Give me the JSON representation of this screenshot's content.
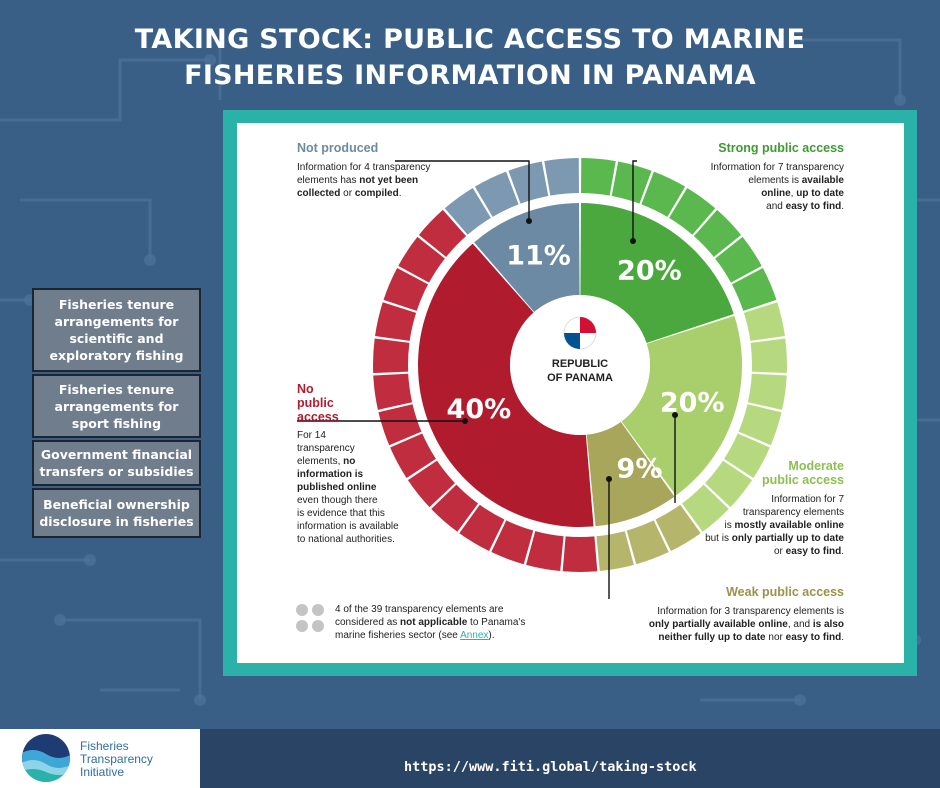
{
  "page": {
    "title_line1": "TAKING STOCK: PUBLIC ACCESS TO MARINE",
    "title_line2": "FISHERIES INFORMATION IN PANAMA",
    "footer_url": "https://www.fiti.global/taking-stock",
    "logo_line1": "Fisheries",
    "logo_line2": "Transparency",
    "logo_line3": "Initiative",
    "center_label_line1": "REPUBLIC",
    "center_label_line2": "OF PANAMA"
  },
  "side_list": [
    "Fisheries tenure arrangements for scientific and exploratory fishing",
    "Fisheries tenure arrangements for sport fishing",
    "Government financial transfers or subsidies",
    "Beneficial ownership disclosure in fisheries"
  ],
  "categories": {
    "not_produced": {
      "title": "Not produced",
      "desc_1": "Information for 4 transparency",
      "desc_2a": "elements has ",
      "desc_2b": "not yet been",
      "desc_3a": "collected",
      "desc_3b": " or ",
      "desc_3c": "compiled",
      "desc_3d": "."
    },
    "strong": {
      "title": "Strong public access",
      "desc_1": "Information for 7 transparency",
      "desc_2a": "elements is ",
      "desc_2b": "available",
      "desc_3a": "online",
      "desc_3b": ", ",
      "desc_3c": "up to date",
      "desc_4a": "and ",
      "desc_4b": "easy to find",
      "desc_4c": "."
    },
    "moderate": {
      "title_1": "Moderate",
      "title_2": "public access",
      "desc_1": "Information for 7",
      "desc_2": "transparency elements",
      "desc_3a": "is ",
      "desc_3b": "mostly available online",
      "desc_4a": "but is ",
      "desc_4b": "only partially up to date",
      "desc_5a": "or ",
      "desc_5b": "easy to find",
      "desc_5c": "."
    },
    "weak": {
      "title": "Weak public access",
      "desc_1": "Information for 3 transparency elements is",
      "desc_2a": "only partially available online",
      "desc_2b": ", and ",
      "desc_2c": "is also",
      "desc_3a": "neither fully up to date",
      "desc_3b": " nor ",
      "desc_3c": "easy to find",
      "desc_3d": "."
    },
    "none": {
      "title_1": "No",
      "title_2": "public",
      "title_3": "access",
      "desc_1": "For 14",
      "desc_2": "transparency",
      "desc_3a": "elements, ",
      "desc_3b": "no",
      "desc_4": "information is",
      "desc_5": "published online",
      "desc_6": "even though there",
      "desc_7": "is evidence that this",
      "desc_8": "information is available",
      "desc_9": "to national authorities."
    }
  },
  "footnote": {
    "line1": "4 of the 39 transparency elements are",
    "line2a": "considered as ",
    "line2b": "not applicable",
    "line2c": " to Panama's",
    "line3a": "marine fisheries sector (see ",
    "line3b": "Annex",
    "line3c": ")."
  },
  "chart_data": {
    "type": "pie",
    "title": "TAKING STOCK: PUBLIC ACCESS TO MARINE FISHERIES INFORMATION IN PANAMA",
    "categories": [
      "Strong public access",
      "Moderate public access",
      "Weak public access",
      "No public access",
      "Not produced"
    ],
    "element_counts": [
      7,
      7,
      3,
      14,
      4
    ],
    "percent_labels": [
      "20%",
      "20%",
      "9%",
      "40%",
      "11%"
    ],
    "colors": [
      "#4aa83e",
      "#a8cf6b",
      "#a7a65b",
      "#b01c2e",
      "#6c8aa3"
    ],
    "not_applicable_count": 4,
    "total_elements": 39
  }
}
